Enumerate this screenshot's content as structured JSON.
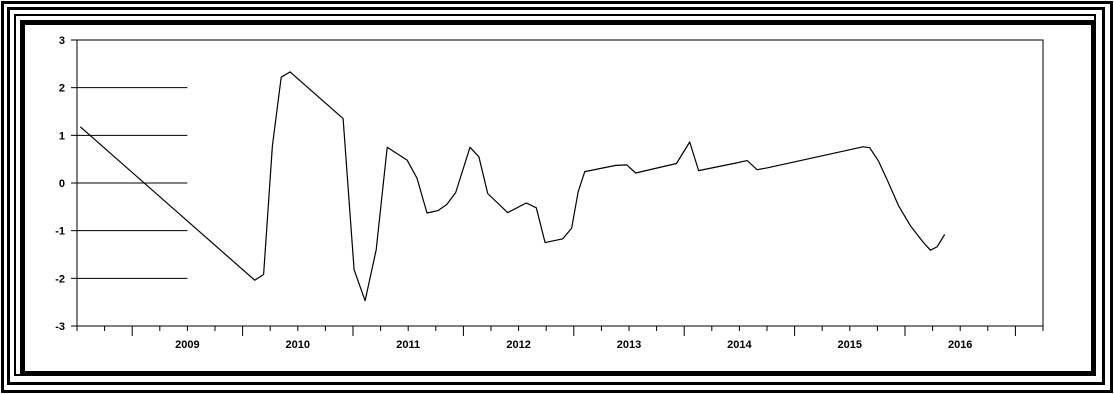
{
  "chart_data": {
    "type": "line",
    "title": "",
    "xlabel": "",
    "ylabel": "",
    "ylim": [
      -3,
      3
    ],
    "yticks": [
      3,
      2,
      1,
      0,
      -1,
      -2,
      -3
    ],
    "ytick_labels": [
      "3",
      "2",
      "1",
      "0",
      "-1",
      "-2",
      "-3"
    ],
    "xtick_labels": [
      "2009",
      "2010",
      "2011",
      "2012",
      "2013",
      "2014",
      "2015",
      "2016"
    ],
    "x_range": [
      2008.5,
      2017.25
    ],
    "grid_y": true,
    "grid_y_span": [
      2008.5,
      2009.5
    ],
    "series": [
      {
        "color": "#000000",
        "x": [
          2008.53,
          2010.11,
          2010.19,
          2010.27,
          2010.35,
          2010.43,
          2010.91,
          2011.01,
          2011.11,
          2011.21,
          2011.31,
          2011.49,
          2011.58,
          2011.67,
          2011.77,
          2011.85,
          2011.93,
          2012.06,
          2012.14,
          2012.22,
          2012.4,
          2012.57,
          2012.66,
          2012.74,
          2012.9,
          2012.98,
          2013.04,
          2013.1,
          2013.38,
          2013.48,
          2013.56,
          2013.93,
          2014.05,
          2014.13,
          2014.47,
          2014.57,
          2014.66,
          2014.76,
          2015.62,
          2015.68,
          2015.76,
          2015.84,
          2015.94,
          2016.05,
          2016.16,
          2016.23,
          2016.29,
          2016.36
        ],
        "y": [
          1.18,
          -2.04,
          -1.92,
          0.78,
          2.22,
          2.33,
          1.35,
          -1.82,
          -2.47,
          -1.4,
          0.75,
          0.48,
          0.1,
          -0.63,
          -0.58,
          -0.45,
          -0.2,
          0.75,
          0.55,
          -0.22,
          -0.62,
          -0.42,
          -0.52,
          -1.25,
          -1.17,
          -0.95,
          -0.18,
          0.24,
          0.37,
          0.38,
          0.21,
          0.41,
          0.86,
          0.26,
          0.42,
          0.47,
          0.28,
          0.32,
          0.76,
          0.74,
          0.46,
          0.06,
          -0.47,
          -0.9,
          -1.23,
          -1.41,
          -1.34,
          -1.08
        ]
      }
    ]
  }
}
